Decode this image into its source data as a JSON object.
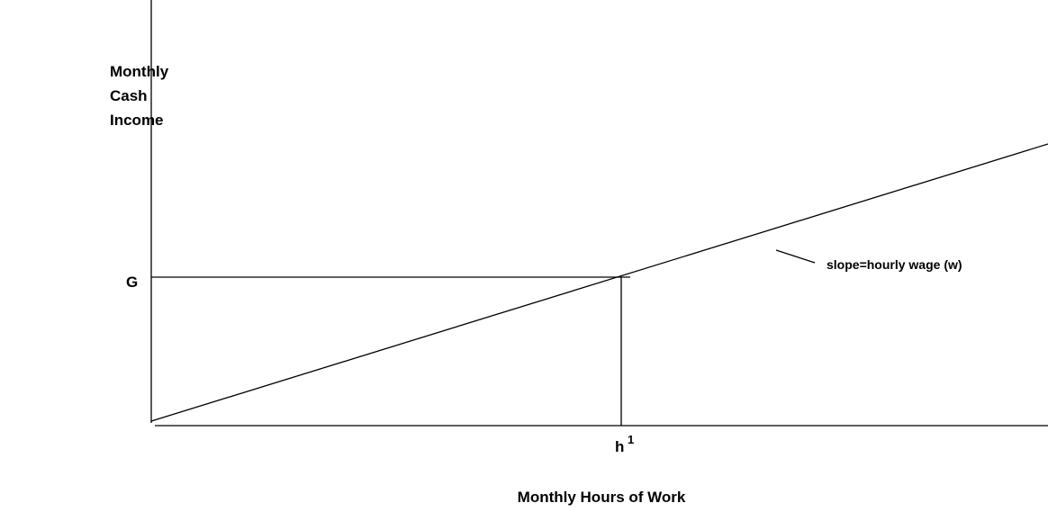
{
  "axis_labels": {
    "y": [
      "Monthly",
      "Cash",
      "Income"
    ],
    "x": "Monthly Hours of Work"
  },
  "labels": {
    "g": "G",
    "h": "h",
    "h_superscript": "1",
    "slope": "slope=hourly wage (w)"
  }
}
